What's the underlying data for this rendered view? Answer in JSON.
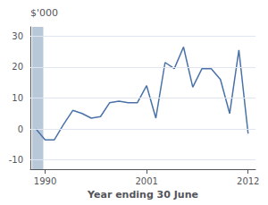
{
  "chart_data": {
    "type": "line",
    "xlabel": "Year ending 30 June",
    "ylabel": "$'000",
    "x": [
      1989,
      1990,
      1991,
      1992,
      1993,
      1994,
      1995,
      1996,
      1997,
      1998,
      1999,
      2000,
      2001,
      2002,
      2003,
      2004,
      2005,
      2006,
      2007,
      2008,
      2009,
      2010,
      2011,
      2012
    ],
    "values": [
      0.0,
      -3.5,
      -3.5,
      1.5,
      6.0,
      5.0,
      3.5,
      4.0,
      8.5,
      9.0,
      8.5,
      8.5,
      14.0,
      3.5,
      21.5,
      19.5,
      26.5,
      13.5,
      19.5,
      19.5,
      16.0,
      5.0,
      25.5,
      -1.5
    ],
    "color": "#4a72a8",
    "xlim": [
      1988.4,
      2012.8
    ],
    "xticks": [
      1990,
      2001,
      2012
    ],
    "ylim": [
      -13,
      33
    ],
    "yticks": [
      -10,
      0,
      10,
      20,
      30
    ],
    "grid": true,
    "shaded": {
      "x": [
        1988.6,
        1989.8
      ],
      "color": "#b8c8d8"
    }
  }
}
